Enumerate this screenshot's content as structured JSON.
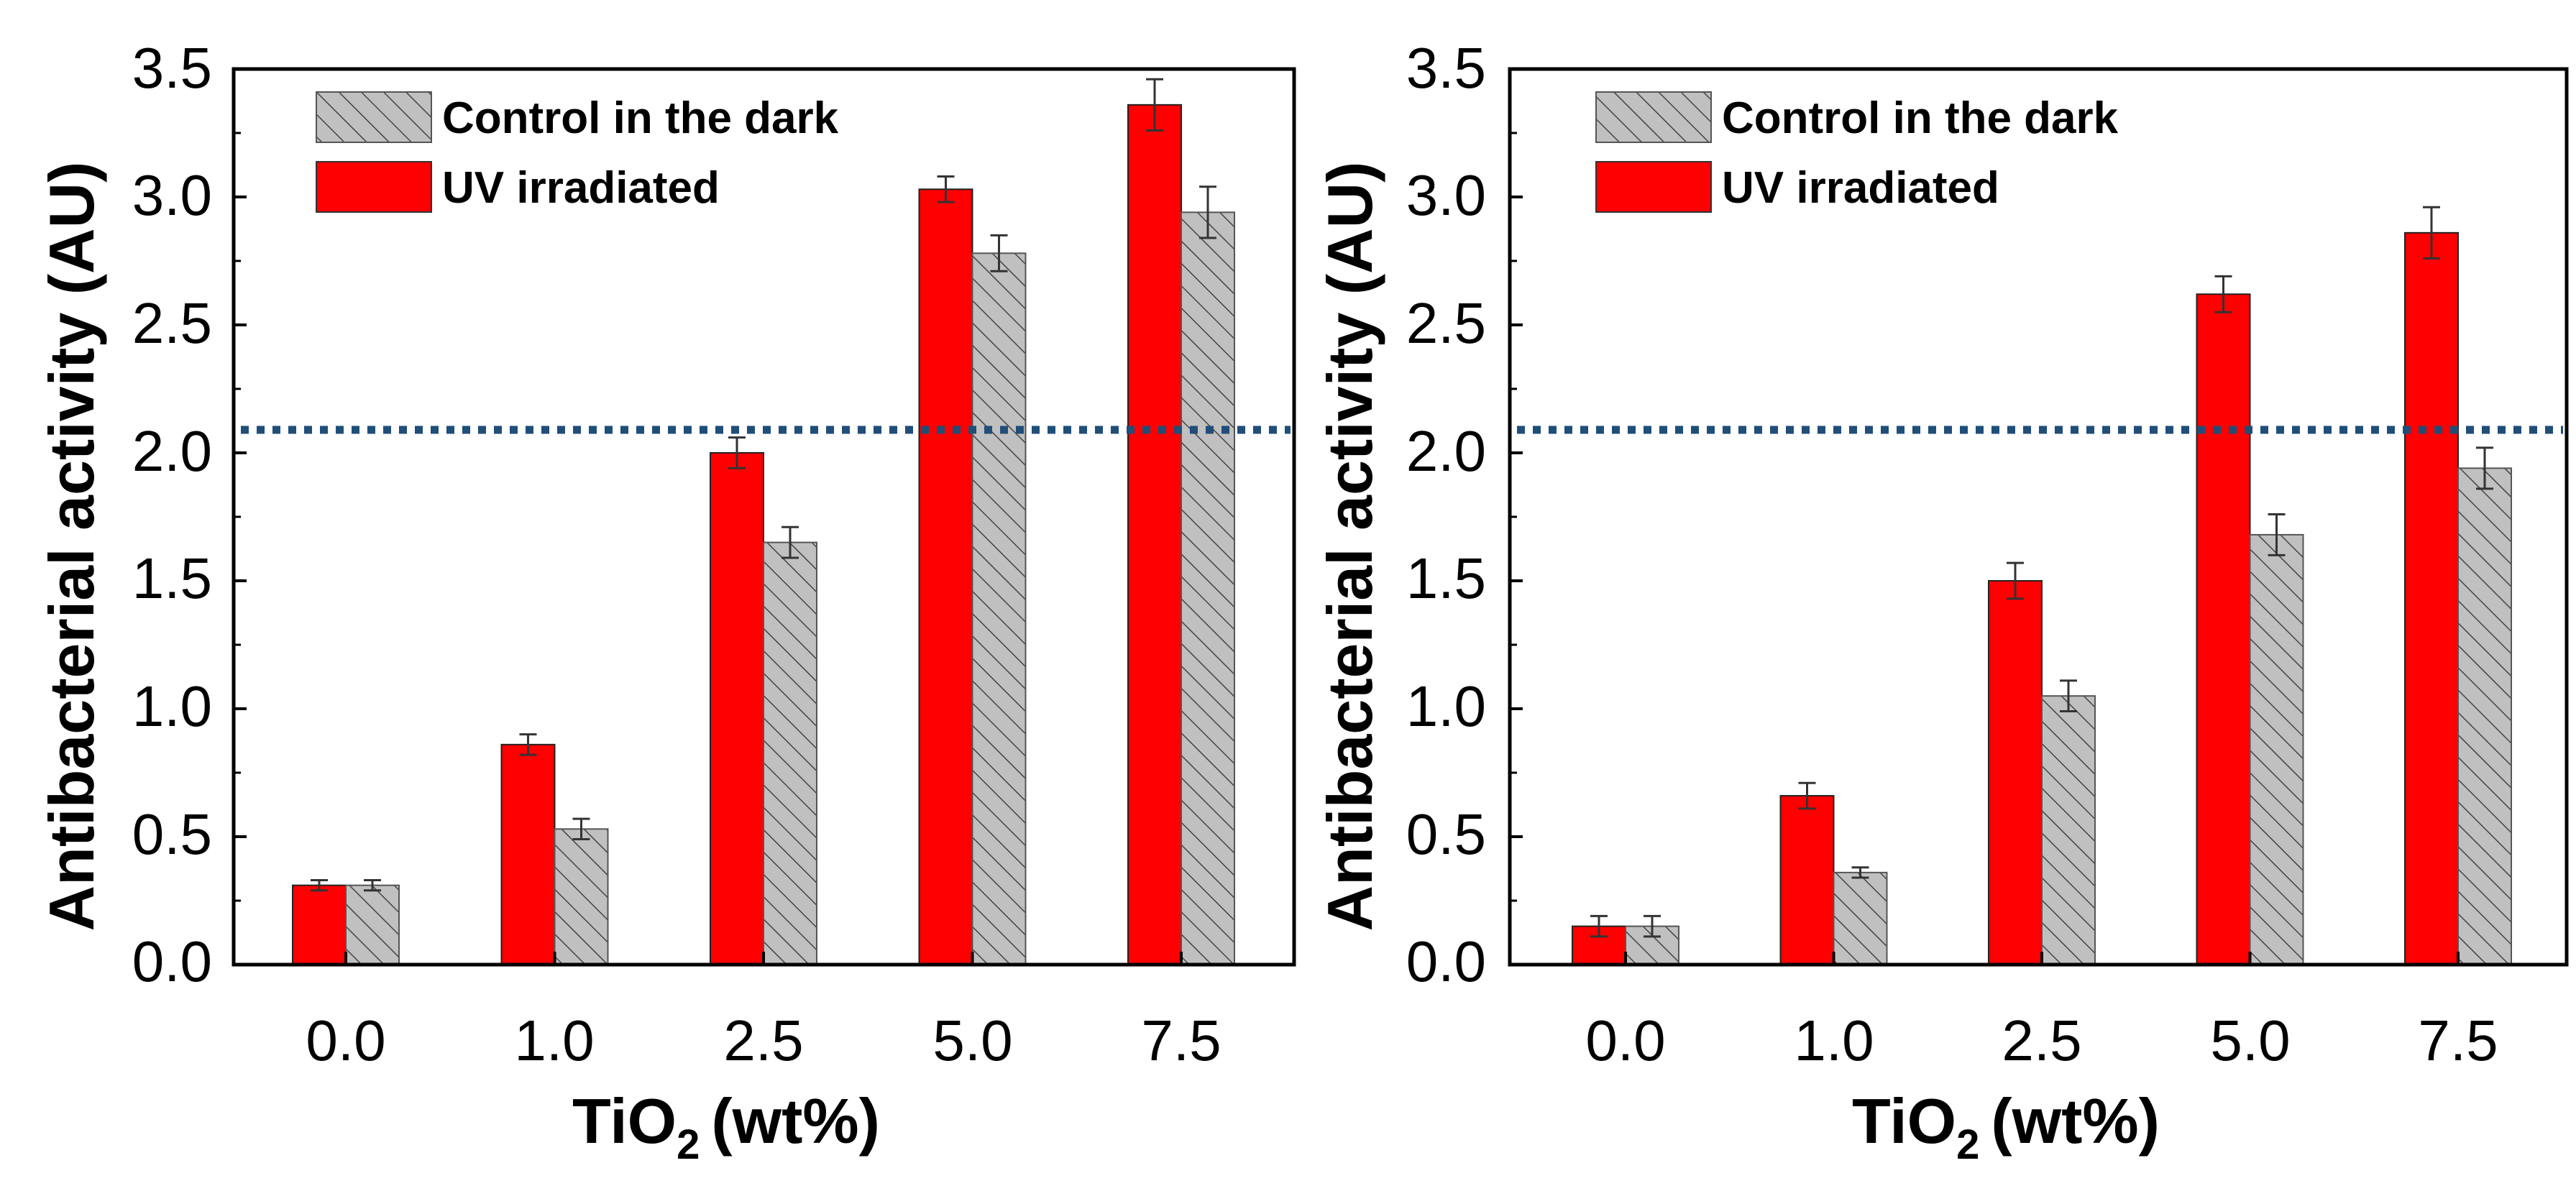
{
  "colors": {
    "uv": "#ff0000",
    "control": "#c0c0c0",
    "hatch": "#444444",
    "threshold": "#1f4e79",
    "axis": "#000000"
  },
  "chart_data": [
    {
      "type": "bar",
      "categories": [
        "0.0",
        "1.0",
        "2.5",
        "5.0",
        "7.5"
      ],
      "xlabel_main": "TiO",
      "xlabel_sub": "2",
      "xlabel_unit": "(wt%)",
      "ylabel": "Antibacterial activity (AU)",
      "ylim": [
        0,
        3.5
      ],
      "yticks": [
        "0.0",
        "0.5",
        "1.0",
        "1.5",
        "2.0",
        "2.5",
        "3.0",
        "3.5"
      ],
      "threshold": 2.09,
      "legend_position": "top-left",
      "series": [
        {
          "name": "UV irradiated",
          "values": [
            0.31,
            0.86,
            2.0,
            3.03,
            3.36
          ],
          "errors": [
            0.02,
            0.04,
            0.06,
            0.05,
            0.1
          ]
        },
        {
          "name": "Control in the dark",
          "values": [
            0.31,
            0.53,
            1.65,
            2.78,
            2.94
          ],
          "errors": [
            0.02,
            0.04,
            0.06,
            0.07,
            0.1
          ]
        }
      ]
    },
    {
      "type": "bar",
      "categories": [
        "0.0",
        "1.0",
        "2.5",
        "5.0",
        "7.5"
      ],
      "xlabel_main": "TiO",
      "xlabel_sub": "2",
      "xlabel_unit": "(wt%)",
      "ylabel": "Antibacterial activity (AU)",
      "ylim": [
        0,
        3.5
      ],
      "yticks": [
        "0.0",
        "0.5",
        "1.0",
        "1.5",
        "2.0",
        "2.5",
        "3.0",
        "3.5"
      ],
      "threshold": 2.09,
      "legend_position": "top-left",
      "series": [
        {
          "name": "UV irradiated",
          "values": [
            0.15,
            0.66,
            1.5,
            2.62,
            2.86
          ],
          "errors": [
            0.04,
            0.05,
            0.07,
            0.07,
            0.1
          ]
        },
        {
          "name": "Control in the dark",
          "values": [
            0.15,
            0.36,
            1.05,
            1.68,
            1.94
          ],
          "errors": [
            0.04,
            0.02,
            0.06,
            0.08,
            0.08
          ]
        }
      ]
    }
  ]
}
